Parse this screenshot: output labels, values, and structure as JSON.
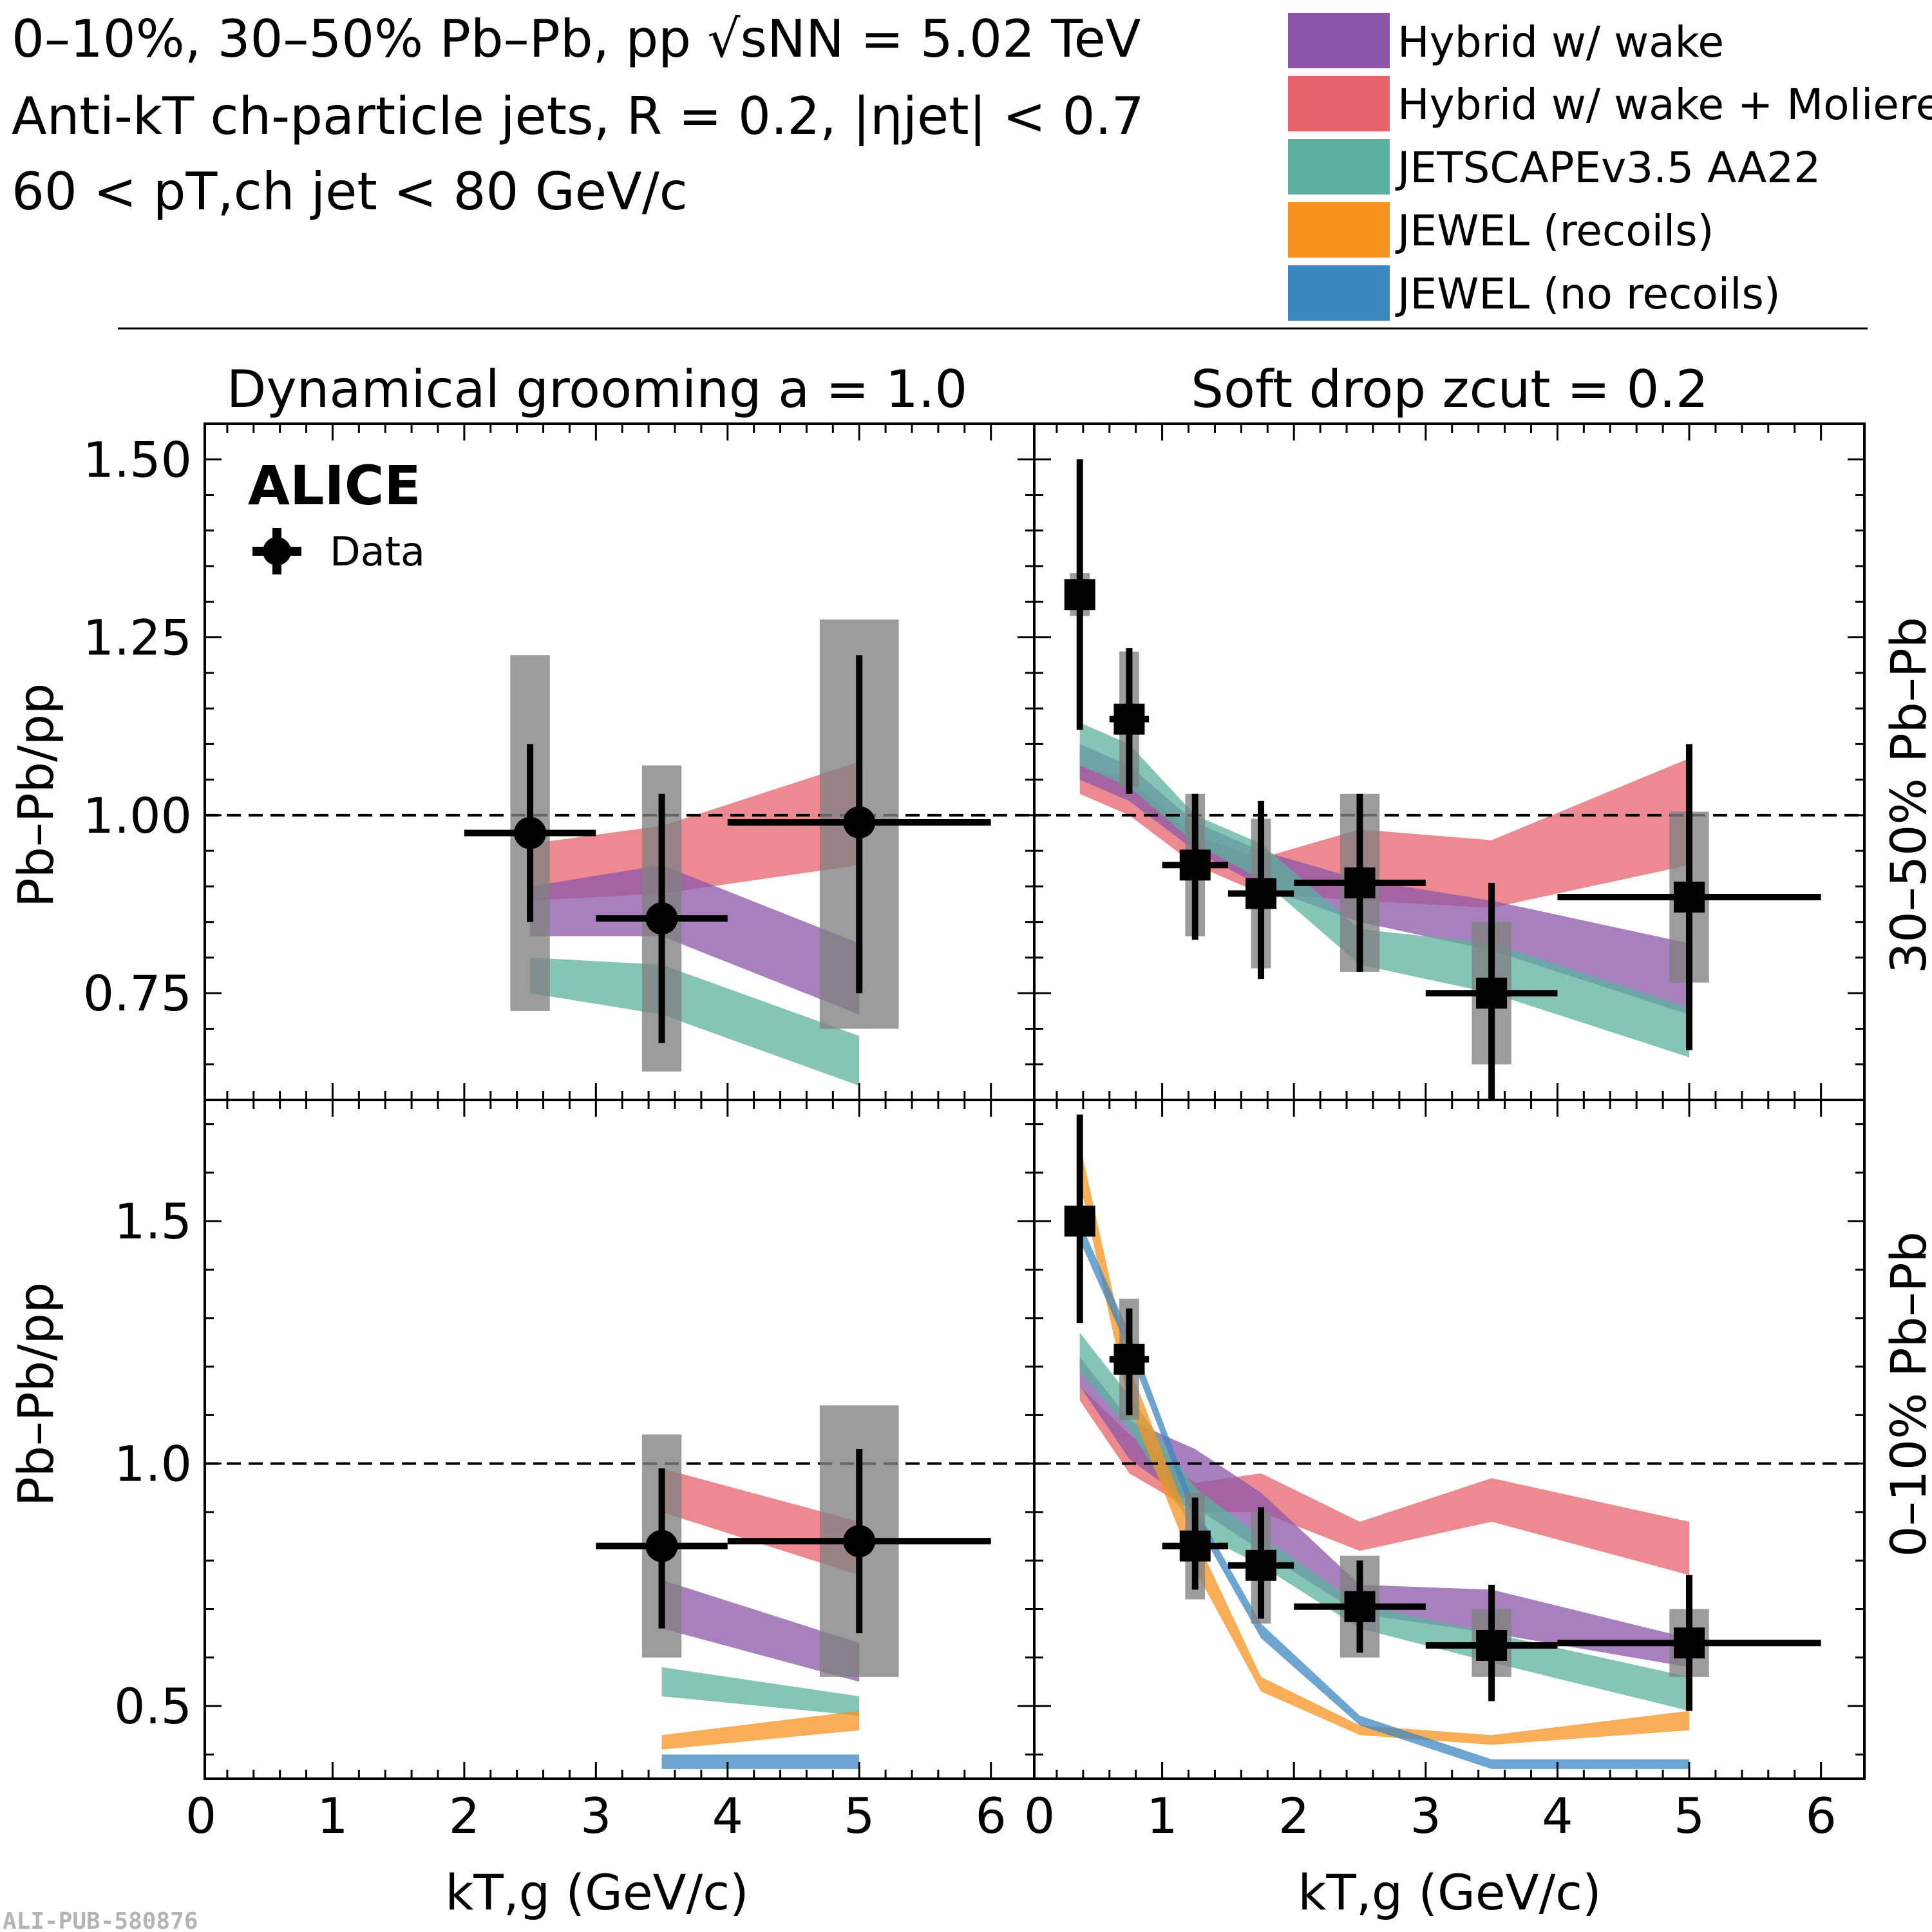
{
  "header": {
    "line1": "0–10%, 30–50% Pb–Pb, pp √sNN = 5.02 TeV",
    "line2": "Anti-kT ch-particle jets, R = 0.2, |ηjet| < 0.7",
    "line3": "60 < pT,ch jet < 80 GeV/c"
  },
  "legend": [
    {
      "label": "Hybrid w/ wake",
      "color": "#8c55a8"
    },
    {
      "label": "Hybrid w/ wake + Moliere",
      "color": "#e5636b"
    },
    {
      "label": "JETSCAPEv3.5 AA22",
      "color": "#5bb19e"
    },
    {
      "label": "JEWEL (recoils)",
      "color": "#f7921e"
    },
    {
      "label": "JEWEL (no recoils)",
      "color": "#3b87c0"
    }
  ],
  "branding": {
    "experiment": "ALICE",
    "data_label": "Data",
    "pub_id": "ALI-PUB-580876"
  },
  "columns": {
    "left_title": "Dynamical grooming a = 1.0",
    "right_title": "Soft drop zcut = 0.2"
  },
  "rows": {
    "top_label": "30–50% Pb–Pb",
    "bottom_label": "0–10% Pb–Pb"
  },
  "axes": {
    "ylabel": "Pb–Pb/pp",
    "xlabel": "kT,g (GeV/c)"
  },
  "chart_data": [
    {
      "type": "scatter",
      "panel": "top-left",
      "x_range": [
        0,
        6.3
      ],
      "y_range": [
        0.6,
        1.55
      ],
      "x_ticks": [
        0,
        1,
        2,
        3,
        4,
        5,
        6
      ],
      "y_ticks": [
        0.75,
        1.0,
        1.25,
        1.5
      ],
      "y_tick_labels": [
        "0.75",
        "1.00",
        "1.25",
        "1.50"
      ],
      "reference_line": 1.0,
      "data": [
        {
          "x": 2.5,
          "xlo": 2.0,
          "xhi": 3.0,
          "y": 0.975,
          "stat": [
            0.85,
            1.1
          ],
          "sys": [
            0.725,
            1.225
          ],
          "sys_half_width": 0.15
        },
        {
          "x": 3.5,
          "xlo": 3.0,
          "xhi": 4.0,
          "y": 0.855,
          "stat": [
            0.68,
            1.03
          ],
          "sys": [
            0.64,
            1.07
          ],
          "sys_half_width": 0.15
        },
        {
          "x": 5.0,
          "xlo": 4.0,
          "xhi": 6.0,
          "y": 0.99,
          "stat": [
            0.75,
            1.225
          ],
          "sys": [
            0.7,
            1.275
          ],
          "sys_half_width": 0.3
        }
      ],
      "bands": [
        {
          "model": "Hybrid w/ wake + Moliere",
          "x": [
            2.5,
            3.5,
            5.0
          ],
          "lo": [
            0.88,
            0.89,
            0.93
          ],
          "hi": [
            0.96,
            0.985,
            1.075
          ]
        },
        {
          "model": "Hybrid w/ wake",
          "x": [
            2.5,
            3.5,
            5.0
          ],
          "lo": [
            0.83,
            0.83,
            0.72
          ],
          "hi": [
            0.9,
            0.93,
            0.82
          ]
        },
        {
          "model": "JETSCAPEv3.5 AA22",
          "x": [
            2.5,
            3.5,
            5.0
          ],
          "lo": [
            0.75,
            0.72,
            0.62
          ],
          "hi": [
            0.8,
            0.79,
            0.69
          ]
        }
      ]
    },
    {
      "type": "scatter",
      "panel": "top-right",
      "x_range": [
        0,
        6.3
      ],
      "y_range": [
        0.6,
        1.55
      ],
      "x_ticks": [
        0,
        1,
        2,
        3,
        4,
        5,
        6
      ],
      "reference_line": 1.0,
      "data": [
        {
          "x": 0.375,
          "xlo": 0.3,
          "xhi": 0.45,
          "y": 1.31,
          "stat": [
            1.12,
            1.5
          ],
          "sys": [
            1.28,
            1.34
          ],
          "sys_half_width": 0.075
        },
        {
          "x": 0.75,
          "xlo": 0.6,
          "xhi": 0.9,
          "y": 1.135,
          "stat": [
            1.03,
            1.235
          ],
          "sys": [
            1.04,
            1.23
          ],
          "sys_half_width": 0.075
        },
        {
          "x": 1.25,
          "xlo": 1.0,
          "xhi": 1.5,
          "y": 0.93,
          "stat": [
            0.825,
            1.03
          ],
          "sys": [
            0.83,
            1.03
          ],
          "sys_half_width": 0.075
        },
        {
          "x": 1.75,
          "xlo": 1.5,
          "xhi": 2.0,
          "y": 0.89,
          "stat": [
            0.77,
            1.02
          ],
          "sys": [
            0.785,
            0.995
          ],
          "sys_half_width": 0.075
        },
        {
          "x": 2.5,
          "xlo": 2.0,
          "xhi": 3.0,
          "y": 0.905,
          "stat": [
            0.78,
            1.03
          ],
          "sys": [
            0.78,
            1.03
          ],
          "sys_half_width": 0.15
        },
        {
          "x": 3.5,
          "xlo": 3.0,
          "xhi": 4.0,
          "y": 0.75,
          "stat": [
            0.59,
            0.905
          ],
          "sys": [
            0.65,
            0.85
          ],
          "sys_half_width": 0.15
        },
        {
          "x": 5.0,
          "xlo": 4.0,
          "xhi": 6.0,
          "y": 0.885,
          "stat": [
            0.67,
            1.1
          ],
          "sys": [
            0.765,
            1.005
          ],
          "sys_half_width": 0.15
        }
      ],
      "bands": [
        {
          "model": "Hybrid w/ wake + Moliere",
          "x": [
            0.375,
            0.75,
            1.25,
            1.75,
            2.5,
            3.5,
            5.0
          ],
          "lo": [
            1.03,
            1.0,
            0.93,
            0.89,
            0.88,
            0.87,
            0.93
          ],
          "hi": [
            1.07,
            1.05,
            0.97,
            0.94,
            0.98,
            0.965,
            1.08
          ]
        },
        {
          "model": "Hybrid w/ wake",
          "x": [
            0.375,
            0.75,
            1.25,
            1.75,
            2.5,
            3.5,
            5.0
          ],
          "lo": [
            1.05,
            1.02,
            0.95,
            0.9,
            0.85,
            0.81,
            0.72
          ],
          "hi": [
            1.1,
            1.07,
            0.99,
            0.95,
            0.91,
            0.88,
            0.82
          ]
        },
        {
          "model": "JETSCAPEv3.5 AA22",
          "x": [
            0.375,
            0.75,
            1.25,
            1.75,
            2.5,
            3.5,
            5.0
          ],
          "lo": [
            1.07,
            1.04,
            0.96,
            0.91,
            0.79,
            0.75,
            0.66
          ],
          "hi": [
            1.13,
            1.1,
            1.0,
            0.96,
            0.84,
            0.82,
            0.73
          ]
        }
      ]
    },
    {
      "type": "scatter",
      "panel": "bottom-left",
      "x_range": [
        0,
        6.3
      ],
      "y_range": [
        0.35,
        1.75
      ],
      "x_ticks": [
        0,
        1,
        2,
        3,
        4,
        5,
        6
      ],
      "y_ticks": [
        0.5,
        1.0,
        1.5
      ],
      "y_tick_labels": [
        "0.5",
        "1.0",
        "1.5"
      ],
      "reference_line": 1.0,
      "data": [
        {
          "x": 3.5,
          "xlo": 3.0,
          "xhi": 4.0,
          "y": 0.83,
          "stat": [
            0.66,
            0.99
          ],
          "sys": [
            0.6,
            1.06
          ],
          "sys_half_width": 0.15
        },
        {
          "x": 5.0,
          "xlo": 4.0,
          "xhi": 6.0,
          "y": 0.84,
          "stat": [
            0.65,
            1.03
          ],
          "sys": [
            0.56,
            1.12
          ],
          "sys_half_width": 0.3
        }
      ],
      "bands": [
        {
          "model": "Hybrid w/ wake + Moliere",
          "x": [
            3.5,
            5.0
          ],
          "lo": [
            0.9,
            0.77
          ],
          "hi": [
            0.99,
            0.88
          ]
        },
        {
          "model": "Hybrid w/ wake",
          "x": [
            3.5,
            5.0
          ],
          "lo": [
            0.66,
            0.55
          ],
          "hi": [
            0.76,
            0.63
          ]
        },
        {
          "model": "JETSCAPEv3.5 AA22",
          "x": [
            3.5,
            5.0
          ],
          "lo": [
            0.52,
            0.48
          ],
          "hi": [
            0.58,
            0.52
          ]
        },
        {
          "model": "JEWEL (recoils)",
          "x": [
            3.5,
            5.0
          ],
          "lo": [
            0.41,
            0.45
          ],
          "hi": [
            0.44,
            0.49
          ]
        },
        {
          "model": "JEWEL (no recoils)",
          "x": [
            3.5,
            5.0
          ],
          "lo": [
            0.37,
            0.37
          ],
          "hi": [
            0.4,
            0.4
          ]
        }
      ]
    },
    {
      "type": "scatter",
      "panel": "bottom-right",
      "x_range": [
        0,
        6.3
      ],
      "y_range": [
        0.35,
        1.75
      ],
      "x_ticks": [
        0,
        1,
        2,
        3,
        4,
        5,
        6
      ],
      "reference_line": 1.0,
      "data": [
        {
          "x": 0.375,
          "xlo": 0.3,
          "xhi": 0.45,
          "y": 1.5,
          "stat": [
            1.29,
            1.72
          ],
          "sys": [
            1.47,
            1.53
          ],
          "sys_half_width": 0.075
        },
        {
          "x": 0.75,
          "xlo": 0.6,
          "xhi": 0.9,
          "y": 1.215,
          "stat": [
            1.1,
            1.32
          ],
          "sys": [
            1.09,
            1.34
          ],
          "sys_half_width": 0.075
        },
        {
          "x": 1.25,
          "xlo": 1.0,
          "xhi": 1.5,
          "y": 0.83,
          "stat": [
            0.74,
            0.93
          ],
          "sys": [
            0.72,
            0.94
          ],
          "sys_half_width": 0.075
        },
        {
          "x": 1.75,
          "xlo": 1.5,
          "xhi": 2.0,
          "y": 0.79,
          "stat": [
            0.68,
            0.91
          ],
          "sys": [
            0.67,
            0.9
          ],
          "sys_half_width": 0.075
        },
        {
          "x": 2.5,
          "xlo": 2.0,
          "xhi": 3.0,
          "y": 0.705,
          "stat": [
            0.61,
            0.8
          ],
          "sys": [
            0.6,
            0.81
          ],
          "sys_half_width": 0.15
        },
        {
          "x": 3.5,
          "xlo": 3.0,
          "xhi": 4.0,
          "y": 0.625,
          "stat": [
            0.51,
            0.75
          ],
          "sys": [
            0.56,
            0.7
          ],
          "sys_half_width": 0.15
        },
        {
          "x": 5.0,
          "xlo": 4.0,
          "xhi": 6.0,
          "y": 0.63,
          "stat": [
            0.49,
            0.77
          ],
          "sys": [
            0.56,
            0.7
          ],
          "sys_half_width": 0.15
        }
      ],
      "bands": [
        {
          "model": "Hybrid w/ wake + Moliere",
          "x": [
            0.375,
            0.75,
            1.25,
            1.75,
            2.5,
            3.5,
            5.0
          ],
          "lo": [
            1.13,
            0.98,
            0.9,
            0.9,
            0.82,
            0.88,
            0.77
          ],
          "hi": [
            1.16,
            1.06,
            0.96,
            0.98,
            0.88,
            0.97,
            0.88
          ]
        },
        {
          "model": "Hybrid w/ wake",
          "x": [
            0.375,
            0.75,
            1.25,
            1.75,
            2.5,
            3.5,
            5.0
          ],
          "lo": [
            1.16,
            1.01,
            0.91,
            0.82,
            0.69,
            0.65,
            0.58
          ],
          "hi": [
            1.22,
            1.09,
            1.03,
            0.94,
            0.75,
            0.74,
            0.64
          ]
        },
        {
          "model": "JETSCAPEv3.5 AA22",
          "x": [
            0.375,
            0.75,
            1.25,
            1.75,
            2.5,
            3.5,
            5.0
          ],
          "lo": [
            1.19,
            1.07,
            0.86,
            0.79,
            0.66,
            0.59,
            0.49
          ],
          "hi": [
            1.27,
            1.14,
            0.95,
            0.85,
            0.71,
            0.65,
            0.56
          ]
        },
        {
          "model": "JEWEL (recoils)",
          "x": [
            0.375,
            0.75,
            1.25,
            1.75,
            2.5,
            3.5,
            5.0
          ],
          "lo": [
            1.58,
            1.12,
            0.78,
            0.53,
            0.44,
            0.42,
            0.45
          ],
          "hi": [
            1.66,
            1.2,
            0.85,
            0.56,
            0.46,
            0.44,
            0.49
          ]
        },
        {
          "model": "JEWEL (no recoils)",
          "x": [
            0.375,
            0.75,
            1.25,
            1.75,
            2.5,
            3.5,
            5.0
          ],
          "lo": [
            1.46,
            1.23,
            0.88,
            0.64,
            0.46,
            0.37,
            0.37
          ],
          "hi": [
            1.5,
            1.27,
            0.91,
            0.67,
            0.48,
            0.39,
            0.39
          ]
        }
      ]
    }
  ]
}
